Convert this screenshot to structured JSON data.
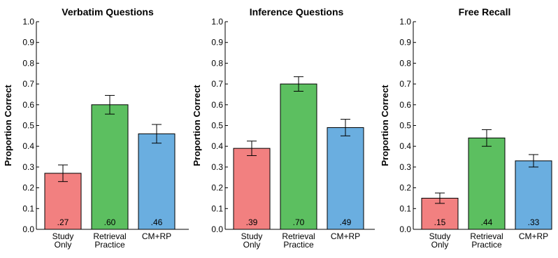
{
  "chart_data": [
    {
      "type": "bar",
      "title": "Verbatim Questions",
      "ylabel": "Proportion Correct",
      "ylim": [
        0,
        1.0
      ],
      "yticks": [
        "0.0",
        "0.1",
        "0.2",
        "0.3",
        "0.4",
        "0.5",
        "0.6",
        "0.7",
        "0.8",
        "0.9",
        "1.0"
      ],
      "categories": [
        [
          "Study",
          "Only"
        ],
        [
          "Retrieval",
          "Practice"
        ],
        [
          "CM+RP"
        ]
      ],
      "values": [
        0.27,
        0.6,
        0.46
      ],
      "errors": [
        0.04,
        0.045,
        0.045
      ],
      "data_labels": [
        ".27",
        ".60",
        ".46"
      ],
      "colors": [
        "#f28080",
        "#5cbf60",
        "#6aaee0"
      ]
    },
    {
      "type": "bar",
      "title": "Inference Questions",
      "ylabel": "Proportion Correct",
      "ylim": [
        0,
        1.0
      ],
      "yticks": [
        "0.0",
        "0.1",
        "0.2",
        "0.3",
        "0.4",
        "0.5",
        "0.6",
        "0.7",
        "0.8",
        "0.9",
        "1.0"
      ],
      "categories": [
        [
          "Study",
          "Only"
        ],
        [
          "Retrieval",
          "Practice"
        ],
        [
          "CM+RP"
        ]
      ],
      "values": [
        0.39,
        0.7,
        0.49
      ],
      "errors": [
        0.035,
        0.035,
        0.04
      ],
      "data_labels": [
        ".39",
        ".70",
        ".49"
      ],
      "colors": [
        "#f28080",
        "#5cbf60",
        "#6aaee0"
      ]
    },
    {
      "type": "bar",
      "title": "Free Recall",
      "ylabel": "Proportion Correct",
      "ylim": [
        0,
        1.0
      ],
      "yticks": [
        "0.0",
        "0.1",
        "0.2",
        "0.3",
        "0.4",
        "0.5",
        "0.6",
        "0.7",
        "0.8",
        "0.9",
        "1.0"
      ],
      "categories": [
        [
          "Study",
          "Only"
        ],
        [
          "Retrieval",
          "Practice"
        ],
        [
          "CM+RP"
        ]
      ],
      "values": [
        0.15,
        0.44,
        0.33
      ],
      "errors": [
        0.025,
        0.04,
        0.03
      ],
      "data_labels": [
        ".15",
        ".44",
        ".33"
      ],
      "colors": [
        "#f28080",
        "#5cbf60",
        "#6aaee0"
      ]
    }
  ]
}
